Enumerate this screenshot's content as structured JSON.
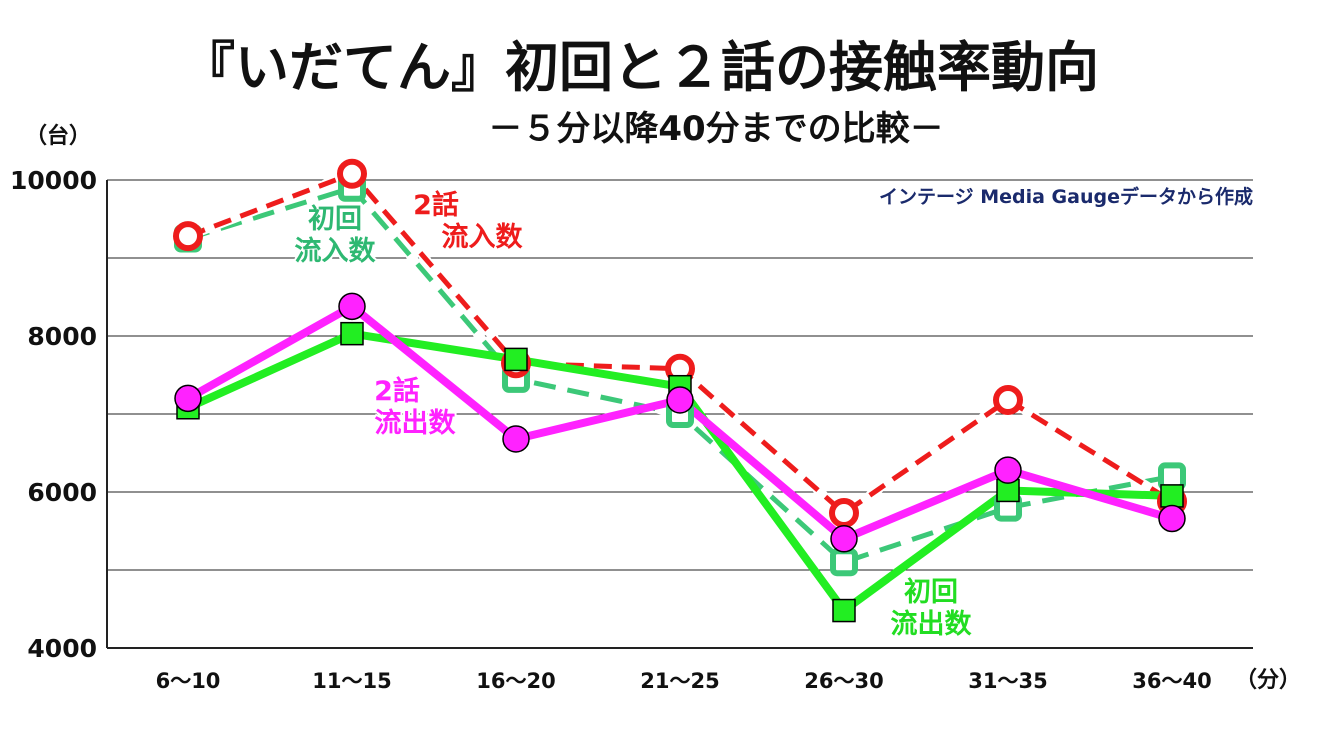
{
  "chart_data": {
    "type": "line",
    "title": "『いだてん』初回と２話の接触率動向",
    "subtitle": "－５分以降40分までの比較－",
    "source_note": "インテージ Media Gaugeデータから作成",
    "y_unit": "（台）",
    "x_unit": "（分）",
    "categories": [
      "6～10",
      "11～15",
      "16～20",
      "21～25",
      "26～30",
      "31～35",
      "36～40"
    ],
    "ylim": [
      4000,
      10000
    ],
    "yticks": [
      4000,
      6000,
      8000,
      10000
    ],
    "ytick_labels": [
      "4000",
      "6000",
      "8000",
      "10000"
    ],
    "grid": true,
    "series": [
      {
        "name": "初回流入数",
        "label_lines": [
          "初回",
          "流入数"
        ],
        "style": "dashed",
        "marker": "square-hollow",
        "color": "#3cc878",
        "values": [
          9250,
          9900,
          7450,
          7000,
          5100,
          5800,
          6200
        ]
      },
      {
        "name": "2話流入数",
        "label_lines": [
          "2話",
          "流入数"
        ],
        "style": "dashed",
        "marker": "circle-hollow",
        "color": "#ee1c1c",
        "values": [
          9280,
          10080,
          7650,
          7580,
          5730,
          7180,
          5880
        ]
      },
      {
        "name": "初回流出数",
        "label_lines": [
          "初回",
          "流出数"
        ],
        "style": "solid",
        "marker": "square-filled",
        "color": "#22ee22",
        "values": [
          7080,
          8030,
          7700,
          7350,
          4480,
          6020,
          5950
        ]
      },
      {
        "name": "2話流出数",
        "label_lines": [
          "2話",
          "流出数"
        ],
        "style": "solid",
        "marker": "circle-filled",
        "color": "#ff22ff",
        "values": [
          7200,
          8380,
          6680,
          7180,
          5400,
          6280,
          5660
        ]
      }
    ]
  }
}
